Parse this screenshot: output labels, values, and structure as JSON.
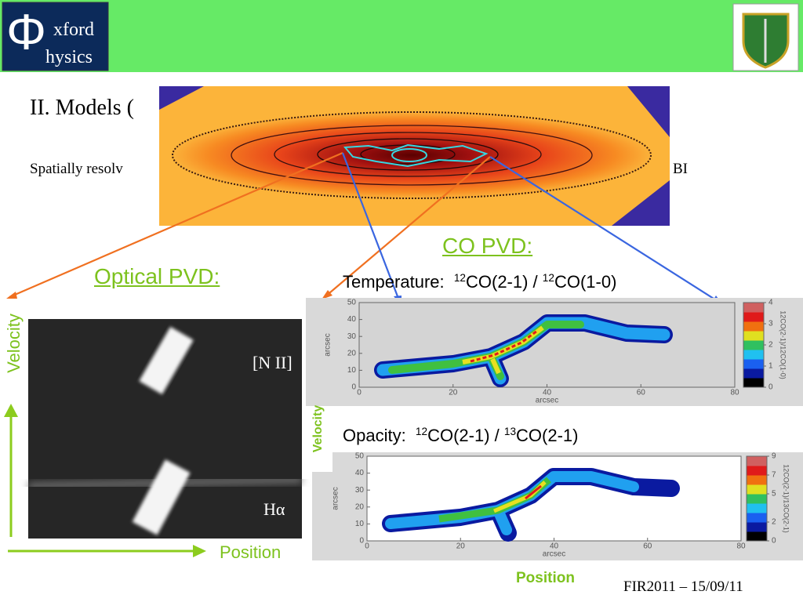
{
  "header": {
    "logo_symbol": "Φ",
    "logo_line1": "xford",
    "logo_line2": "hysics"
  },
  "title": "II. Models (",
  "subtitle_left": "Spatially resolv",
  "subtitle_right": "BI",
  "co_pvd_label": "CO PVD:",
  "optical_pvd_label": "Optical PVD:",
  "temperature_label": [
    "Temperature:  ",
    "12",
    "CO(2-1) / ",
    "12",
    "CO(1-0)"
  ],
  "opacity_label": [
    "Opacity:  ",
    "12",
    "CO(2-1) / ",
    "13",
    "CO(2-1)"
  ],
  "optical_axes": {
    "y_label": "Velocity",
    "x_label": "Position",
    "line_top": "[N II]",
    "line_bottom": "Hα"
  },
  "co_axes": {
    "y_label": "Velocity",
    "x_label": "Position"
  },
  "panels": [
    {
      "xlim": [
        0,
        80
      ],
      "xticks": [
        0,
        20,
        40,
        60,
        80
      ],
      "ylim": [
        0,
        50
      ],
      "yticks": [
        0,
        10,
        20,
        30,
        40,
        50
      ],
      "xlabel": "arcsec",
      "ylabel": "arcsec",
      "clim": [
        0,
        4
      ],
      "cticks": [
        0,
        1,
        2,
        3,
        4
      ],
      "clabel": "12CO(2-1)/12CO(1-0)"
    },
    {
      "xlim": [
        0,
        80
      ],
      "xticks": [
        0,
        20,
        40,
        60,
        80
      ],
      "ylim": [
        0,
        50
      ],
      "yticks": [
        0,
        10,
        20,
        30,
        40,
        50
      ],
      "xlabel": "arcsec",
      "ylabel": "arcsec",
      "clim": [
        0,
        9
      ],
      "cticks": [
        0,
        2,
        5,
        7,
        9
      ],
      "clabel": "12CO(2-1)/13CO(2-1)"
    }
  ],
  "footer": "FIR2011 – 15/09/11"
}
